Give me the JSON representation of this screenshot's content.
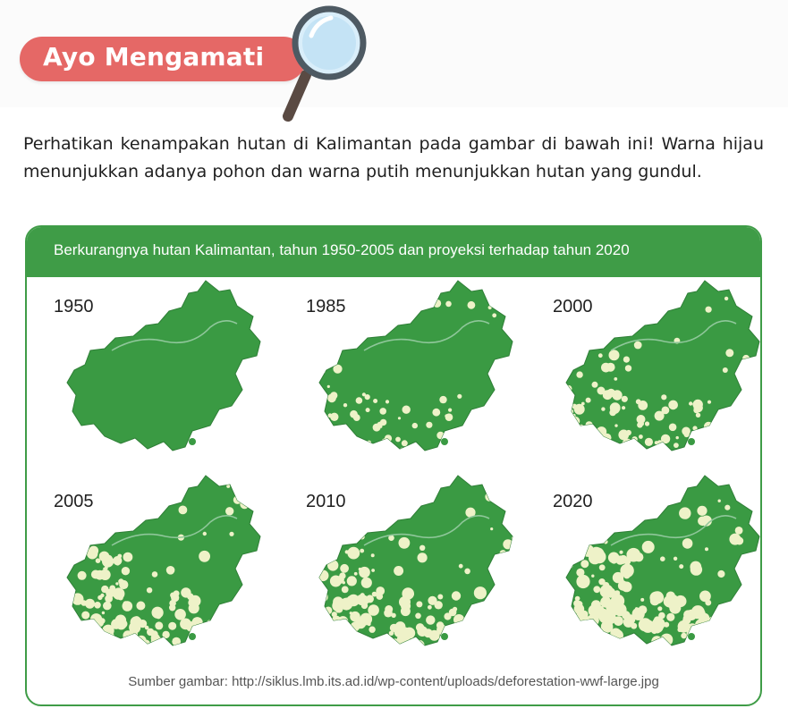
{
  "section_badge": {
    "label": "Ayo Mengamati"
  },
  "intro": {
    "text": "Perhatikan kenampakan hutan di Kalimantan pada gambar di bawah ini! Warna hijau menunjukkan adanya pohon dan warna putih menunjukkan hutan yang gundul."
  },
  "panel": {
    "title": "Berkurangnya hutan Kalimantan, tahun 1950-2005 dan proyeksi terhadap tahun 2020",
    "source": "Sumber gambar: http://siklus.lmb.its.ad.id/wp-content/uploads/deforestation-wwf-large.jpg"
  },
  "maps": [
    {
      "year": "1950",
      "deforestation_level": 0.0
    },
    {
      "year": "1985",
      "deforestation_level": 0.25
    },
    {
      "year": "2000",
      "deforestation_level": 0.4
    },
    {
      "year": "2005",
      "deforestation_level": 0.55
    },
    {
      "year": "2010",
      "deforestation_level": 0.65
    },
    {
      "year": "2020",
      "deforestation_level": 0.8
    }
  ],
  "colors": {
    "badge": "#e56866",
    "panel_accent": "#3f9c47",
    "forest": "#3a9a43",
    "cleared": "#eef2c8",
    "river": "#8fc79a"
  },
  "icons": {
    "badge_icon": "magnifying-glass-icon"
  }
}
